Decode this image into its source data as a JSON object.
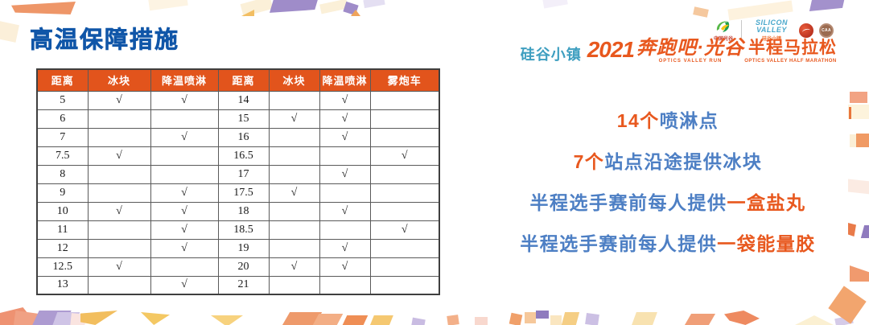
{
  "page": {
    "title": "高温保障措施"
  },
  "branding": {
    "logo_cn_optics": "中国光谷",
    "logo_silicon_en": "SILICON VALLEY",
    "logo_silicon_cn": "硅谷小镇",
    "badge_caa": "CAA",
    "event_prefix": "硅谷小镇",
    "event_year": "2021",
    "event_name": "奔跑吧·光谷",
    "event_name_sub": "OPTICS VALLEY RUN",
    "event_suffix": "半程马拉松",
    "event_suffix_sub": "OPTICS VALLEY HALF MARATHON"
  },
  "table": {
    "headers": [
      "距离",
      "冰块",
      "降温喷淋",
      "距离",
      "冰块",
      "降温喷淋",
      "雾炮车"
    ],
    "rows": [
      [
        "5",
        "√",
        "√",
        "14",
        "",
        "√",
        ""
      ],
      [
        "6",
        "",
        "",
        "15",
        "√",
        "√",
        ""
      ],
      [
        "7",
        "",
        "√",
        "16",
        "",
        "√",
        ""
      ],
      [
        "7.5",
        "√",
        "",
        "16.5",
        "",
        "",
        "√"
      ],
      [
        "8",
        "",
        "",
        "17",
        "",
        "√",
        ""
      ],
      [
        "9",
        "",
        "√",
        "17.5",
        "√",
        "",
        ""
      ],
      [
        "10",
        "√",
        "√",
        "18",
        "",
        "√",
        ""
      ],
      [
        "11",
        "",
        "√",
        "18.5",
        "",
        "",
        "√"
      ],
      [
        "12",
        "",
        "√",
        "19",
        "",
        "√",
        ""
      ],
      [
        "12.5",
        "√",
        "",
        "20",
        "√",
        "√",
        ""
      ],
      [
        "13",
        "",
        "√",
        "21",
        "",
        "",
        ""
      ]
    ]
  },
  "highlights": [
    {
      "segments": [
        {
          "text": "14个",
          "color": "orange"
        },
        {
          "text": "喷淋点",
          "color": "blue"
        }
      ]
    },
    {
      "segments": [
        {
          "text": "7个",
          "color": "orange"
        },
        {
          "text": "站点沿途提供冰块",
          "color": "blue"
        }
      ]
    },
    {
      "segments": [
        {
          "text": "半程选手赛前每人提供",
          "color": "blue"
        },
        {
          "text": "一盒盐丸",
          "color": "orange"
        }
      ]
    },
    {
      "segments": [
        {
          "text": "半程选手赛前每人提供",
          "color": "blue"
        },
        {
          "text": "一袋能量胶",
          "color": "orange"
        }
      ]
    }
  ],
  "colors": {
    "title_blue": "#1056A8",
    "text_blue": "#4D7FC4",
    "accent_orange": "#E8581E",
    "header_bg": "#E2541C",
    "brand_teal": "#3F9FC0"
  }
}
